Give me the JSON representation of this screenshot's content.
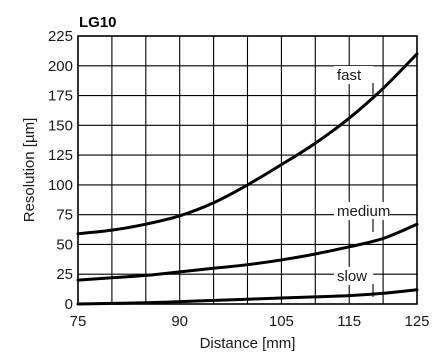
{
  "chart_data": {
    "type": "line",
    "title": "LG10",
    "xlabel": "Distance [mm]",
    "ylabel": "Resolution [µm]",
    "xlim": [
      75,
      125
    ],
    "ylim": [
      0,
      225
    ],
    "x_ticks": [
      {
        "value": 75,
        "label": "75"
      },
      {
        "value": 90,
        "label": "90"
      },
      {
        "value": 105,
        "label": "105"
      },
      {
        "value": 115,
        "label": "115"
      },
      {
        "value": 125,
        "label": "125"
      }
    ],
    "y_ticks": [
      0,
      25,
      50,
      75,
      100,
      125,
      150,
      175,
      200,
      225
    ],
    "grid": true,
    "series": [
      {
        "name": "fast",
        "x": [
          75,
          80,
          85,
          90,
          95,
          100,
          105,
          110,
          115,
          120,
          125
        ],
        "values": [
          59,
          62,
          67,
          74,
          85,
          100,
          117,
          135,
          156,
          181,
          210
        ]
      },
      {
        "name": "medium",
        "x": [
          75,
          80,
          85,
          90,
          95,
          100,
          105,
          110,
          115,
          120,
          125
        ],
        "values": [
          20,
          22,
          24,
          27,
          30,
          33,
          37,
          42,
          48,
          55,
          67
        ]
      },
      {
        "name": "slow",
        "x": [
          75,
          80,
          85,
          90,
          95,
          100,
          105,
          110,
          115,
          120,
          125
        ],
        "values": [
          0,
          0.5,
          1,
          2,
          3,
          4,
          5,
          6,
          7,
          9,
          12
        ]
      }
    ]
  }
}
